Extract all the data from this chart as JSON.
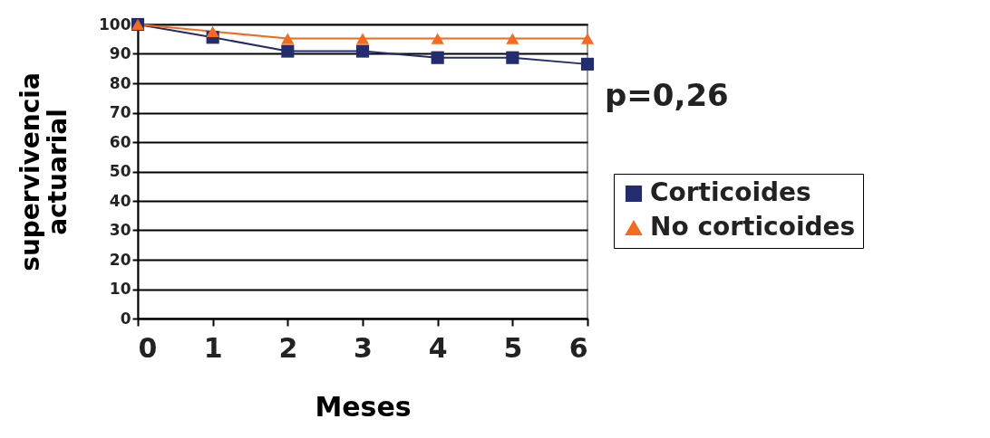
{
  "chart_data": {
    "type": "line",
    "xlabel": "Meses",
    "ylabel": "supervivencia actuarial",
    "x": [
      0,
      1,
      2,
      3,
      4,
      5,
      6
    ],
    "series": [
      {
        "name": "Corticoides",
        "color": "#232c6e",
        "marker": "square",
        "values": [
          100,
          95.6,
          90.9,
          90.9,
          88.7,
          88.7,
          86.5
        ]
      },
      {
        "name": "No corticoides",
        "color": "#f26b21",
        "marker": "triangle",
        "values": [
          100,
          97.6,
          95.2,
          95.2,
          95.2,
          95.2,
          95.2
        ]
      }
    ],
    "xlim": [
      0,
      6
    ],
    "xticks": [
      0,
      1,
      2,
      3,
      4,
      5,
      6
    ],
    "ylim": [
      0,
      100
    ],
    "yticks": [
      0,
      10,
      20,
      30,
      40,
      50,
      60,
      70,
      80,
      90,
      100
    ],
    "grid": "y",
    "legend": "right",
    "line_style": "solid",
    "annotations": [
      "p=0,26"
    ]
  }
}
